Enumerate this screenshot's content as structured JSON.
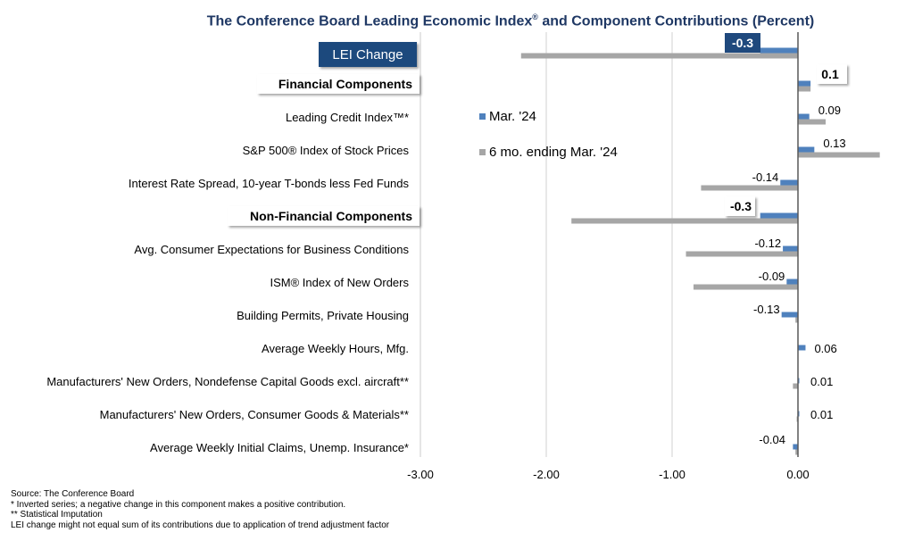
{
  "chart_data": {
    "type": "bar",
    "orientation": "horizontal",
    "title": "The Conference Board Leading Economic Index® and Component Contributions (Percent)",
    "xlabel": "",
    "ylabel": "",
    "xlim": [
      -3.0,
      0.65
    ],
    "x_ticks": [
      "-3.00",
      "-2.00",
      "-1.00",
      "0.00"
    ],
    "x_tick_values": [
      -3,
      -2,
      -1,
      0
    ],
    "grid": "vertical",
    "legend_placement": "upper-middle",
    "categories": [
      {
        "label": "LEI Change",
        "kind": "headline"
      },
      {
        "label": "Financial Components",
        "kind": "group"
      },
      {
        "label": "Leading Credit Index™*",
        "kind": "item"
      },
      {
        "label": "S&P 500® Index of Stock Prices",
        "kind": "item"
      },
      {
        "label": "Interest Rate Spread, 10-year T-bonds less Fed Funds",
        "kind": "item"
      },
      {
        "label": "Non-Financial Components",
        "kind": "group"
      },
      {
        "label": "Avg. Consumer Expectations for Business Conditions",
        "kind": "item"
      },
      {
        "label": "ISM® Index of New Orders",
        "kind": "item"
      },
      {
        "label": "Building Permits, Private Housing",
        "kind": "item"
      },
      {
        "label": "Average Weekly Hours, Mfg.",
        "kind": "item"
      },
      {
        "label": "Manufacturers' New Orders, Nondefense Capital Goods excl. aircraft**",
        "kind": "item"
      },
      {
        "label": "Manufacturers' New Orders, Consumer Goods & Materials**",
        "kind": "item"
      },
      {
        "label": "Average Weekly Initial Claims, Unemp. Insurance*",
        "kind": "item"
      }
    ],
    "series": [
      {
        "name": "Mar. '24",
        "color": "#4f81bd",
        "values": [
          -0.3,
          0.1,
          0.09,
          0.13,
          -0.14,
          -0.3,
          -0.12,
          -0.09,
          -0.13,
          0.06,
          0.01,
          0.01,
          -0.04
        ],
        "labels": [
          "-0.3",
          "0.1",
          "0.09",
          "0.13",
          "-0.14",
          "-0.3",
          "-0.12",
          "-0.09",
          "-0.13",
          "0.06",
          "0.01",
          "0.01",
          "-0.04"
        ]
      },
      {
        "name": "6 mo. ending Mar. '24",
        "color": "#a6a6a6",
        "values": [
          -2.2,
          0.1,
          0.22,
          0.65,
          -0.77,
          -1.8,
          -0.89,
          -0.83,
          -0.02,
          0.0,
          -0.04,
          -0.01,
          -0.02
        ]
      }
    ]
  },
  "footnotes": [
    "Source: The Conference Board",
    "*  Inverted series; a negative change in this component makes a positive contribution.",
    "**  Statistical Imputation",
    "LEI change might not equal sum of its contributions due to application of trend adjustment factor"
  ],
  "colors": {
    "title": "#1f3864",
    "headline_box": "#1f497d",
    "axis": "#595959",
    "grid": "#d9d9d9"
  }
}
